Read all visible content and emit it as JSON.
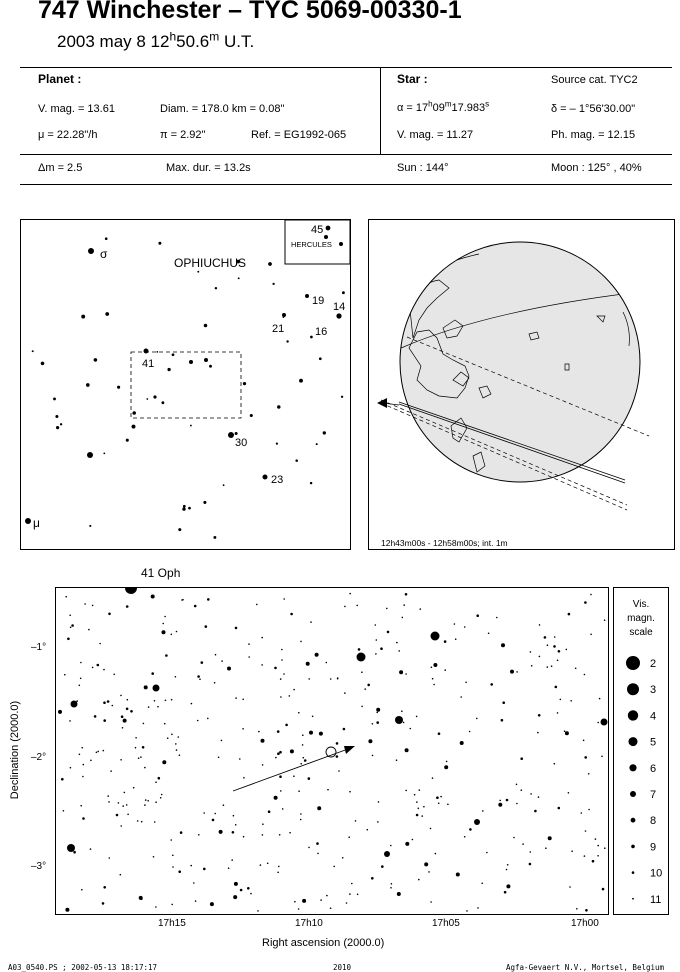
{
  "header": {
    "title": "747 Winchester  –  TYC 5069-00330-1",
    "date_prefix": "2003 may  8  12",
    "time_h": "h",
    "time_mid": "50.6",
    "time_m": "m",
    "time_suffix": " U.T."
  },
  "planet": {
    "heading": "Planet :",
    "vmag": "V. mag. = 13.61",
    "diam": "Diam. = 178.0 km = 0.08\"",
    "mu": "μ = 22.28\"/h",
    "pi": "π = 2.92\"",
    "ref": "Ref. = EG1992-065"
  },
  "star": {
    "heading": "Star :",
    "source": "Source cat.  TYC2",
    "alpha_pre": "α = 17",
    "alpha_h": "h",
    "alpha_mid": "09",
    "alpha_m": "m",
    "alpha_sec": "17.983",
    "alpha_s": "s",
    "delta": "δ = – 1°56'30.00\"",
    "vmag": "V. mag. = 11.27",
    "phmag": "Ph. mag. = 12.15"
  },
  "summary": {
    "dm": "Δm = 2.5",
    "maxdur": "Max. dur. = 13.2s",
    "sun": "Sun : 144°",
    "moon": "Moon : 125° , 40%"
  },
  "finder": {
    "constellation": "OPHIUCHUS",
    "inset_label": "HERCULES",
    "inset_number": "45",
    "star_labels": [
      "σ",
      "19",
      "14",
      "21",
      "16",
      "41",
      "30",
      "23",
      "μ"
    ]
  },
  "globe": {
    "caption": "12h43m00s - 12h58m00s; int.  1m"
  },
  "chart": {
    "star_label": "41 Oph",
    "ylabel": "Declination (2000.0)",
    "xlabel": "Right ascension (2000.0)",
    "yticks": [
      "–1°",
      "–2°",
      "–3°"
    ],
    "xticks": [
      "17h15",
      "17h10",
      "17h05",
      "17h00"
    ],
    "scale_title": [
      "Vis.",
      "magn.",
      "scale"
    ],
    "scale_mags": [
      "2",
      "3",
      "4",
      "5",
      "6",
      "7",
      "8",
      "9",
      "10",
      "11"
    ]
  },
  "footer": {
    "left": "A03_0540.PS ; 2002-05-13 18:17:17",
    "center": "2010",
    "right": "Agfa-Gevaert N.V., Mortsel, Belgium"
  }
}
